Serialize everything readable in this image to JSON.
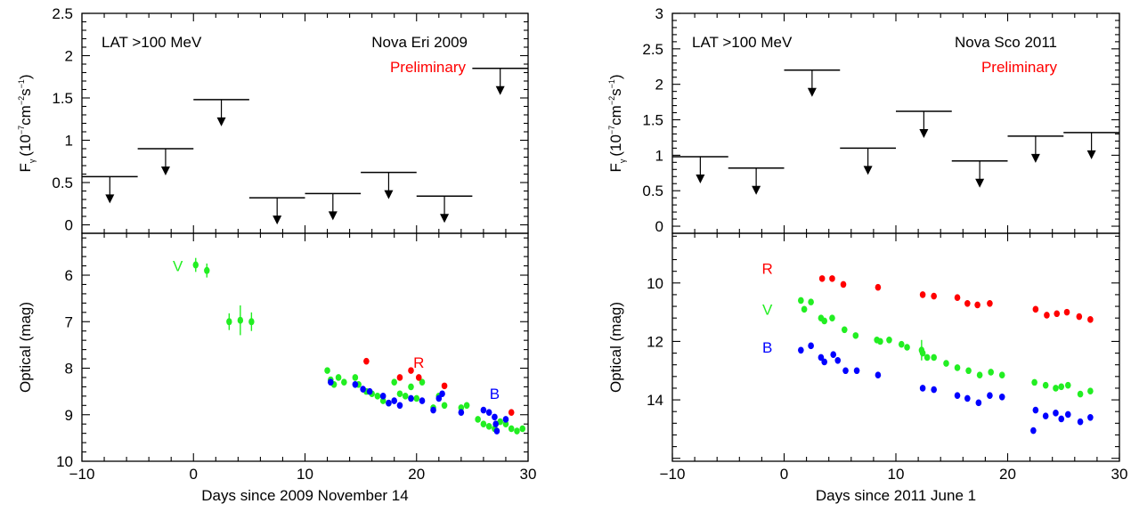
{
  "colors": {
    "R": "#ff0000",
    "V": "#22ee22",
    "B": "#0000ff",
    "preliminary": "#ff0000",
    "axis": "#000000"
  },
  "chart_data": [
    {
      "id": "eri",
      "type": "scatter",
      "xlabel": "Days since 2009 November 14",
      "xlim": [
        -10,
        30
      ],
      "xticks": [
        "−10",
        "0",
        "10",
        "20",
        "30"
      ],
      "top": {
        "instrument_label": "LAT >100 MeV",
        "title": "Nova Eri 2009",
        "preliminary": "Preliminary",
        "ylabel_main": "F",
        "ylabel_sub": "γ",
        "ylabel_unit_a": "(10",
        "ylabel_exp1": "−7",
        "ylabel_unit_b": "cm",
        "ylabel_exp2": "−2",
        "ylabel_unit_c": "s",
        "ylabel_exp3": "−1",
        "ylabel_unit_d": ")",
        "ylim": [
          -0.1,
          2.5
        ],
        "yticks": [
          "0",
          "0.5",
          "1",
          "1.5",
          "2",
          "2.5"
        ],
        "upper_limits": [
          {
            "x": [
              -10,
              -5
            ],
            "y": 0.57
          },
          {
            "x": [
              -5,
              0
            ],
            "y": 0.9
          },
          {
            "x": [
              0,
              5
            ],
            "y": 1.48
          },
          {
            "x": [
              5,
              10
            ],
            "y": 0.32
          },
          {
            "x": [
              10,
              15
            ],
            "y": 0.37
          },
          {
            "x": [
              15,
              20
            ],
            "y": 0.62
          },
          {
            "x": [
              20,
              25
            ],
            "y": 0.34
          },
          {
            "x": [
              25,
              30
            ],
            "y": 1.85
          }
        ]
      },
      "bottom": {
        "ylabel": "Optical (mag)",
        "ylim": [
          10,
          5.1
        ],
        "yticks": [
          "6",
          "7",
          "8",
          "9",
          "10"
        ],
        "band_labels": [
          {
            "band": "V",
            "text": "V",
            "x": -1.4,
            "y": 5.8
          },
          {
            "band": "R",
            "text": "R",
            "x": 20.2,
            "y": 7.88
          },
          {
            "band": "B",
            "text": "B",
            "x": 27.0,
            "y": 8.55
          }
        ],
        "series": [
          {
            "band": "V",
            "errpoints": [
              [
                0.2,
                5.78,
                0.15
              ],
              [
                1.2,
                5.9,
                0.15
              ],
              [
                3.2,
                7.0,
                0.18
              ],
              [
                4.2,
                6.97,
                0.32
              ],
              [
                5.2,
                7.0,
                0.2
              ]
            ],
            "points": [
              [
                12.0,
                8.05
              ],
              [
                12.3,
                8.25
              ],
              [
                12.6,
                8.35
              ],
              [
                13.0,
                8.2
              ],
              [
                13.5,
                8.3
              ],
              [
                14.5,
                8.2
              ],
              [
                14.8,
                8.35
              ],
              [
                15.5,
                8.5
              ],
              [
                16.0,
                8.55
              ],
              [
                16.5,
                8.6
              ],
              [
                17.0,
                8.7
              ],
              [
                17.5,
                8.75
              ],
              [
                18.0,
                8.3
              ],
              [
                18.5,
                8.55
              ],
              [
                19.0,
                8.6
              ],
              [
                19.5,
                8.4
              ],
              [
                20.0,
                8.65
              ],
              [
                20.5,
                8.3
              ],
              [
                21.5,
                8.85
              ],
              [
                22.0,
                8.6
              ],
              [
                22.5,
                8.8
              ],
              [
                24.0,
                8.85
              ],
              [
                24.5,
                8.8
              ],
              [
                25.5,
                9.1
              ],
              [
                26.0,
                9.2
              ],
              [
                26.5,
                9.25
              ],
              [
                27.0,
                9.3
              ],
              [
                27.5,
                9.15
              ],
              [
                28.0,
                9.2
              ],
              [
                28.5,
                9.3
              ],
              [
                29.0,
                9.35
              ],
              [
                29.5,
                9.3
              ]
            ]
          },
          {
            "band": "R",
            "points": [
              [
                15.5,
                7.85
              ],
              [
                18.5,
                8.2
              ],
              [
                19.5,
                8.05
              ],
              [
                20.2,
                8.2
              ],
              [
                22.5,
                8.38
              ],
              [
                28.5,
                8.95
              ]
            ]
          },
          {
            "band": "B",
            "points": [
              [
                12.3,
                8.3
              ],
              [
                14.5,
                8.35
              ],
              [
                15.2,
                8.45
              ],
              [
                15.8,
                8.5
              ],
              [
                17.0,
                8.6
              ],
              [
                17.5,
                8.75
              ],
              [
                18.0,
                8.7
              ],
              [
                18.5,
                8.8
              ],
              [
                19.5,
                8.65
              ],
              [
                20.5,
                8.7
              ],
              [
                21.5,
                8.9
              ],
              [
                22.0,
                8.65
              ],
              [
                22.3,
                8.55
              ],
              [
                24.0,
                8.95
              ],
              [
                26.0,
                8.9
              ],
              [
                26.5,
                8.95
              ],
              [
                27.0,
                9.05
              ],
              [
                27.1,
                9.2
              ],
              [
                27.2,
                9.35
              ],
              [
                28.0,
                9.1
              ]
            ]
          }
        ]
      }
    },
    {
      "id": "sco",
      "type": "scatter",
      "xlabel": "Days since 2011 June 1",
      "xlim": [
        -10,
        30
      ],
      "xticks": [
        "−10",
        "0",
        "10",
        "20",
        "30"
      ],
      "top": {
        "instrument_label": "LAT >100 MeV",
        "title": "Nova Sco 2011",
        "preliminary": "Preliminary",
        "ylabel_main": "F",
        "ylabel_sub": "γ",
        "ylabel_unit_a": "(10",
        "ylabel_exp1": "−7",
        "ylabel_unit_b": "cm",
        "ylabel_exp2": "−2",
        "ylabel_unit_c": "s",
        "ylabel_exp3": "−1",
        "ylabel_unit_d": ")",
        "ylim": [
          -0.1,
          3.0
        ],
        "yticks": [
          "0",
          "0.5",
          "1",
          "1.5",
          "2",
          "2.5",
          "3"
        ],
        "upper_limits": [
          {
            "x": [
              -10,
              -5
            ],
            "y": 0.98
          },
          {
            "x": [
              -5,
              0
            ],
            "y": 0.82
          },
          {
            "x": [
              0,
              5
            ],
            "y": 2.2
          },
          {
            "x": [
              5,
              10
            ],
            "y": 1.1
          },
          {
            "x": [
              10,
              15
            ],
            "y": 1.62
          },
          {
            "x": [
              15,
              20
            ],
            "y": 0.92
          },
          {
            "x": [
              20,
              25
            ],
            "y": 1.27
          },
          {
            "x": [
              25,
              30
            ],
            "y": 1.32
          }
        ]
      },
      "bottom": {
        "ylabel": "Optical (mag)",
        "ylim": [
          16.1,
          8.3
        ],
        "yticks": [
          "10",
          "12",
          "14"
        ],
        "band_labels": [
          {
            "band": "R",
            "text": "R",
            "x": -1.5,
            "y": 9.5
          },
          {
            "band": "V",
            "text": "V",
            "x": -1.5,
            "y": 10.9
          },
          {
            "band": "B",
            "text": "B",
            "x": -1.5,
            "y": 12.2
          }
        ],
        "series": [
          {
            "band": "R",
            "points": [
              [
                3.4,
                9.85
              ],
              [
                4.3,
                9.85
              ],
              [
                5.3,
                10.05
              ],
              [
                8.4,
                10.15
              ],
              [
                12.4,
                10.4
              ],
              [
                13.4,
                10.45
              ],
              [
                15.5,
                10.5
              ],
              [
                16.4,
                10.7
              ],
              [
                17.3,
                10.75
              ],
              [
                18.4,
                10.7
              ],
              [
                22.5,
                10.9
              ],
              [
                23.5,
                11.1
              ],
              [
                24.4,
                11.05
              ],
              [
                25.3,
                11.0
              ],
              [
                26.4,
                11.15
              ],
              [
                27.4,
                11.25
              ]
            ]
          },
          {
            "band": "V",
            "errpoints": [
              [
                12.3,
                12.3,
                0.35
              ]
            ],
            "points": [
              [
                1.5,
                10.6
              ],
              [
                1.8,
                10.9
              ],
              [
                2.4,
                10.65
              ],
              [
                3.3,
                11.2
              ],
              [
                3.6,
                11.3
              ],
              [
                4.3,
                11.2
              ],
              [
                5.4,
                11.6
              ],
              [
                6.4,
                11.8
              ],
              [
                8.3,
                11.95
              ],
              [
                8.6,
                12.0
              ],
              [
                9.4,
                11.95
              ],
              [
                10.5,
                12.1
              ],
              [
                11.0,
                12.2
              ],
              [
                12.4,
                12.4
              ],
              [
                12.8,
                12.55
              ],
              [
                13.4,
                12.55
              ],
              [
                14.5,
                12.75
              ],
              [
                15.5,
                12.9
              ],
              [
                16.5,
                13.0
              ],
              [
                17.5,
                13.15
              ],
              [
                18.5,
                13.05
              ],
              [
                19.5,
                13.15
              ],
              [
                22.4,
                13.4
              ],
              [
                23.4,
                13.5
              ],
              [
                24.3,
                13.6
              ],
              [
                24.8,
                13.55
              ],
              [
                25.4,
                13.5
              ],
              [
                26.5,
                13.8
              ],
              [
                27.4,
                13.7
              ]
            ]
          },
          {
            "band": "B",
            "points": [
              [
                1.5,
                12.3
              ],
              [
                2.4,
                12.15
              ],
              [
                3.3,
                12.55
              ],
              [
                3.6,
                12.7
              ],
              [
                4.4,
                12.45
              ],
              [
                4.8,
                12.65
              ],
              [
                5.5,
                13.0
              ],
              [
                6.5,
                13.0
              ],
              [
                8.4,
                13.15
              ],
              [
                12.4,
                13.6
              ],
              [
                13.4,
                13.65
              ],
              [
                15.5,
                13.85
              ],
              [
                16.4,
                13.95
              ],
              [
                17.4,
                14.1
              ],
              [
                18.4,
                13.85
              ],
              [
                19.5,
                13.9
              ],
              [
                22.3,
                15.05
              ],
              [
                22.5,
                14.35
              ],
              [
                23.4,
                14.55
              ],
              [
                24.3,
                14.45
              ],
              [
                24.8,
                14.65
              ],
              [
                25.4,
                14.5
              ],
              [
                26.5,
                14.75
              ],
              [
                27.4,
                14.6
              ]
            ]
          }
        ]
      }
    }
  ]
}
